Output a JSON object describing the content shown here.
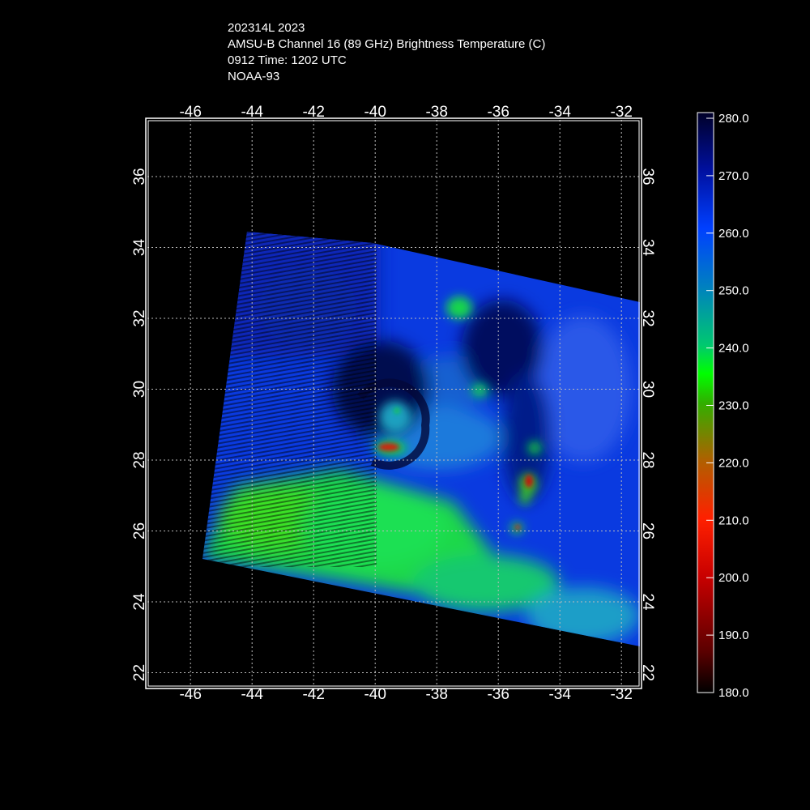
{
  "header": {
    "storm": "202314L 2023",
    "product": "AMSU-B Channel 16 (89 GHz) Brightness Temperature (C)",
    "time": "0912 Time: 1202 UTC",
    "satellite": "NOAA-93"
  },
  "map": {
    "lon_ticks": [
      "-46",
      "-44",
      "-42",
      "-40",
      "-38",
      "-36",
      "-34",
      "-32"
    ],
    "lat_ticks": [
      "22",
      "24",
      "26",
      "28",
      "30",
      "32",
      "34",
      "36"
    ],
    "lon_range": [
      -47.4,
      -31.4
    ],
    "lat_range": [
      21.6,
      37.6
    ],
    "gridlines": true,
    "background_color": "#000000",
    "frame_color": "#ffffff"
  },
  "colorbar": {
    "labels": [
      "280.0",
      "270.0",
      "260.0",
      "250.0",
      "240.0",
      "230.0",
      "220.0",
      "210.0",
      "200.0",
      "190.0",
      "180.0"
    ],
    "range": [
      180,
      280
    ],
    "colors": [
      "#000000",
      "#5a0000",
      "#c80000",
      "#ff2000",
      "#b06000",
      "#30b000",
      "#00ff00",
      "#00c870",
      "#0080c0",
      "#0040ff",
      "#0010a0",
      "#000028"
    ]
  }
}
